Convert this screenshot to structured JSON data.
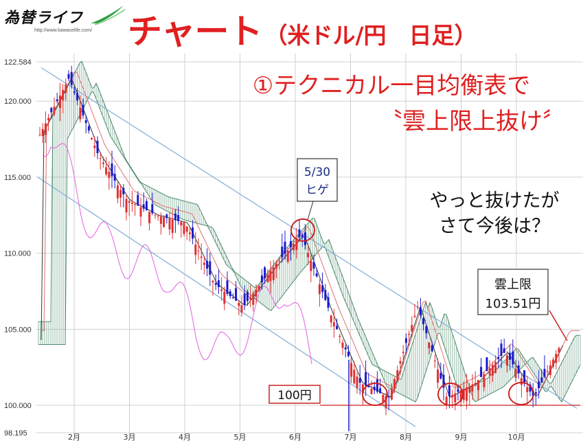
{
  "header": {
    "logo_text": "為替ライフ",
    "logo_url": "http://www.kawaselife.com/",
    "title_main": "チャート",
    "title_sub": "（米ドル/円　日足）"
  },
  "annotations": {
    "headline_line1": "①テクニカル一目均衡表で",
    "headline_line2": "〝雲上限上抜け〞",
    "callout_date": "5/30",
    "callout_word": "ヒゲ",
    "comment_line1": "やっと抜けたが",
    "comment_line2": "さて今後は？",
    "cloud_label_line1": "雲上限",
    "cloud_label_line2": "103.51円",
    "support_label": "100円"
  },
  "colors": {
    "candle": "#1a1acc",
    "candle_up": "#e03030",
    "cloud": "#4a8a6a",
    "base_line": "#333333",
    "span_line": "#e07070",
    "lagging": "#e060e0",
    "trend": "#8ab0d8",
    "support": "#cc2020",
    "grid": "#d0d0d0"
  },
  "chart_data": {
    "type": "line",
    "title": "",
    "ylim": [
      98.195,
      122.584
    ],
    "y_ticks": [
      "122.584",
      "120.000",
      "115.000",
      "110.000",
      "105.000",
      "100.000",
      "98.195"
    ],
    "y_tick_values": [
      122.584,
      120,
      115,
      110,
      105,
      100,
      98.195
    ],
    "x_ticks": [
      "2月",
      "3月",
      "4月",
      "5月",
      "6月",
      "7月",
      "8月",
      "9月",
      "10月"
    ],
    "support_level": 100,
    "cloud_upper_latest": 103.51,
    "approx_daily_close": [
      {
        "x": "1月中",
        "y": 117.8
      },
      {
        "x": "2月初",
        "y": 121.5
      },
      {
        "x": "2月中",
        "y": 116.5
      },
      {
        "x": "3月初",
        "y": 113.5
      },
      {
        "x": "3月中",
        "y": 112.5
      },
      {
        "x": "4月初",
        "y": 112.0
      },
      {
        "x": "4月中",
        "y": 108.0
      },
      {
        "x": "5月初",
        "y": 106.5
      },
      {
        "x": "5月中",
        "y": 109.0
      },
      {
        "x": "5月末",
        "y": 111.2
      },
      {
        "x": "6月中",
        "y": 106.0
      },
      {
        "x": "6月末",
        "y": 101.5
      },
      {
        "x": "7月中",
        "y": 100.5
      },
      {
        "x": "7月末",
        "y": 106.5
      },
      {
        "x": "8月中",
        "y": 100.5
      },
      {
        "x": "8月末",
        "y": 101.5
      },
      {
        "x": "9月中",
        "y": 103.5
      },
      {
        "x": "9月末",
        "y": 100.5
      },
      {
        "x": "10月中",
        "y": 104.3
      }
    ],
    "legend": []
  }
}
